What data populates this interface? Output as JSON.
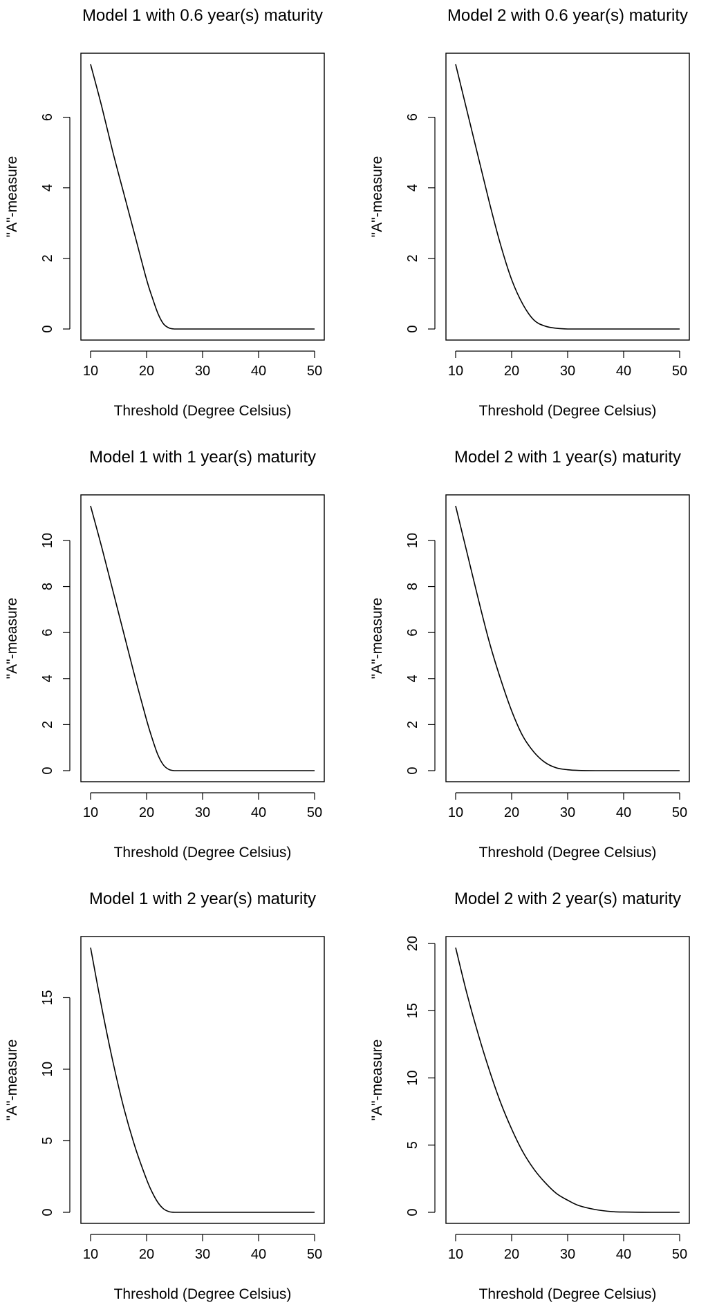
{
  "chart_data": [
    {
      "type": "line",
      "title": "Model 1 with  0.6 year(s) maturity",
      "xlabel": "Threshold (Degree Celsius)",
      "ylabel": "\"A\"-measure",
      "xlim": [
        10,
        50
      ],
      "ylim": [
        0,
        7.5
      ],
      "xticks": [
        10,
        20,
        30,
        40,
        50
      ],
      "yticks": [
        0,
        2,
        4,
        6
      ],
      "x": [
        10,
        12,
        14,
        16,
        18,
        20,
        21,
        22,
        23,
        24,
        25,
        26,
        30,
        40,
        50
      ],
      "y": [
        7.5,
        6.3,
        5.0,
        3.8,
        2.6,
        1.4,
        0.9,
        0.45,
        0.15,
        0.03,
        0,
        0,
        0,
        0,
        0
      ]
    },
    {
      "type": "line",
      "title": "Model 2 with  0.6 year(s) maturity",
      "xlabel": "Threshold (Degree Celsius)",
      "ylabel": "\"A\"-measure",
      "xlim": [
        10,
        50
      ],
      "ylim": [
        0,
        7.5
      ],
      "xticks": [
        10,
        20,
        30,
        40,
        50
      ],
      "yticks": [
        0,
        2,
        4,
        6
      ],
      "x": [
        10,
        12,
        14,
        16,
        18,
        20,
        22,
        24,
        26,
        28,
        30,
        35,
        40,
        50
      ],
      "y": [
        7.5,
        6.2,
        4.9,
        3.6,
        2.4,
        1.4,
        0.7,
        0.25,
        0.08,
        0.02,
        0,
        0,
        0,
        0
      ]
    },
    {
      "type": "line",
      "title": "Model 1 with  1 year(s) maturity",
      "xlabel": "Threshold (Degree Celsius)",
      "ylabel": "\"A\"-measure",
      "xlim": [
        10,
        50
      ],
      "ylim": [
        0,
        11.5
      ],
      "xticks": [
        10,
        20,
        30,
        40,
        50
      ],
      "yticks": [
        0,
        2,
        4,
        6,
        8,
        10
      ],
      "x": [
        10,
        12,
        14,
        16,
        18,
        20,
        21,
        22,
        23,
        24,
        25,
        26,
        30,
        40,
        50
      ],
      "y": [
        11.5,
        9.7,
        7.8,
        5.9,
        4.0,
        2.2,
        1.4,
        0.7,
        0.25,
        0.05,
        0,
        0,
        0,
        0,
        0
      ]
    },
    {
      "type": "line",
      "title": "Model 2 with  1 year(s) maturity",
      "xlabel": "Threshold (Degree Celsius)",
      "ylabel": "\"A\"-measure",
      "xlim": [
        10,
        50
      ],
      "ylim": [
        0,
        11.5
      ],
      "xticks": [
        10,
        20,
        30,
        40,
        50
      ],
      "yticks": [
        0,
        2,
        4,
        6,
        8,
        10
      ],
      "x": [
        10,
        12,
        14,
        16,
        18,
        20,
        22,
        24,
        26,
        28,
        30,
        32,
        35,
        40,
        50
      ],
      "y": [
        11.5,
        9.5,
        7.5,
        5.6,
        4.0,
        2.6,
        1.5,
        0.8,
        0.35,
        0.12,
        0.04,
        0.01,
        0,
        0,
        0
      ]
    },
    {
      "type": "line",
      "title": "Model 1 with  2 year(s) maturity",
      "xlabel": "Threshold (Degree Celsius)",
      "ylabel": "\"A\"-measure",
      "xlim": [
        10,
        50
      ],
      "ylim": [
        0,
        18.5
      ],
      "xticks": [
        10,
        20,
        30,
        40,
        50
      ],
      "yticks": [
        0,
        5,
        10,
        15
      ],
      "x": [
        10,
        12,
        14,
        16,
        18,
        20,
        21,
        22,
        23,
        24,
        25,
        26,
        30,
        40,
        50
      ],
      "y": [
        18.5,
        14.3,
        10.5,
        7.2,
        4.5,
        2.3,
        1.4,
        0.7,
        0.25,
        0.05,
        0,
        0,
        0,
        0,
        0
      ]
    },
    {
      "type": "line",
      "title": "Model 2 with  2 year(s) maturity",
      "xlabel": "Threshold (Degree Celsius)",
      "ylabel": "\"A\"-measure",
      "xlim": [
        10,
        50
      ],
      "ylim": [
        0,
        19.7
      ],
      "xticks": [
        10,
        20,
        30,
        40,
        50
      ],
      "yticks": [
        0,
        5,
        10,
        15,
        20
      ],
      "x": [
        10,
        12,
        14,
        16,
        18,
        20,
        22,
        24,
        26,
        28,
        30,
        32,
        35,
        38,
        40,
        45,
        50
      ],
      "y": [
        19.7,
        16.3,
        13.3,
        10.6,
        8.2,
        6.2,
        4.5,
        3.2,
        2.2,
        1.4,
        0.9,
        0.5,
        0.2,
        0.05,
        0.02,
        0,
        0
      ]
    }
  ]
}
